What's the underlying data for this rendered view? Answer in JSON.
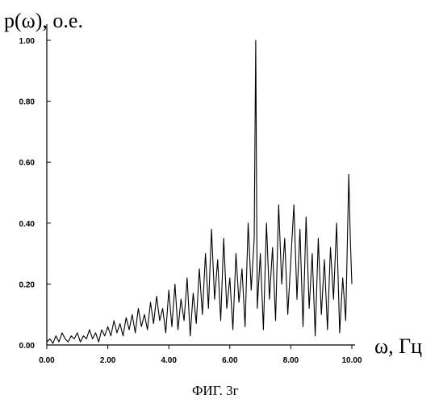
{
  "chart_data": {
    "type": "line",
    "title": "",
    "ylabel": "p(ω), о.е.",
    "xlabel": "ω, Гц",
    "caption": "ФИГ. 3г",
    "xlim": [
      0,
      10
    ],
    "ylim": [
      0,
      1
    ],
    "x_ticks": [
      0,
      2,
      4,
      6,
      8,
      10
    ],
    "x_tick_labels": [
      "0.00",
      "2.00",
      "4.00",
      "6.00",
      "8.00",
      "10.00"
    ],
    "y_ticks": [
      0,
      0.2,
      0.4,
      0.6,
      0.8,
      1.0
    ],
    "y_tick_labels": [
      "0.00",
      "0.20",
      "0.40",
      "0.60",
      "0.80",
      "1.00"
    ],
    "grid": false,
    "series": [
      {
        "x": [
          0.0,
          0.1,
          0.2,
          0.3,
          0.4,
          0.5,
          0.6,
          0.7,
          0.8,
          0.9,
          1.0,
          1.1,
          1.2,
          1.3,
          1.4,
          1.5,
          1.6,
          1.7,
          1.8,
          1.9,
          2.0,
          2.1,
          2.2,
          2.3,
          2.4,
          2.5,
          2.6,
          2.7,
          2.8,
          2.9,
          3.0,
          3.1,
          3.2,
          3.3,
          3.4,
          3.5,
          3.6,
          3.7,
          3.8,
          3.9,
          4.0,
          4.1,
          4.2,
          4.3,
          4.4,
          4.5,
          4.6,
          4.7,
          4.8,
          4.9,
          5.0,
          5.1,
          5.2,
          5.3,
          5.4,
          5.5,
          5.6,
          5.7,
          5.8,
          5.9,
          6.0,
          6.1,
          6.2,
          6.3,
          6.4,
          6.5,
          6.6,
          6.7,
          6.8,
          6.85,
          6.9,
          7.0,
          7.1,
          7.2,
          7.3,
          7.4,
          7.5,
          7.6,
          7.7,
          7.8,
          7.9,
          8.0,
          8.1,
          8.2,
          8.3,
          8.4,
          8.5,
          8.6,
          8.7,
          8.8,
          8.9,
          9.0,
          9.1,
          9.2,
          9.3,
          9.4,
          9.5,
          9.6,
          9.7,
          9.8,
          9.9,
          9.95,
          10.0
        ],
        "y": [
          0.01,
          0.02,
          0.005,
          0.03,
          0.01,
          0.04,
          0.02,
          0.01,
          0.03,
          0.02,
          0.04,
          0.01,
          0.03,
          0.02,
          0.05,
          0.02,
          0.04,
          0.01,
          0.05,
          0.03,
          0.06,
          0.03,
          0.08,
          0.04,
          0.07,
          0.03,
          0.09,
          0.05,
          0.1,
          0.04,
          0.12,
          0.06,
          0.1,
          0.05,
          0.14,
          0.07,
          0.16,
          0.08,
          0.12,
          0.04,
          0.18,
          0.06,
          0.2,
          0.05,
          0.15,
          0.08,
          0.22,
          0.03,
          0.17,
          0.07,
          0.25,
          0.1,
          0.3,
          0.12,
          0.38,
          0.15,
          0.28,
          0.08,
          0.35,
          0.12,
          0.22,
          0.05,
          0.3,
          0.14,
          0.25,
          0.06,
          0.4,
          0.18,
          0.35,
          1.0,
          0.12,
          0.3,
          0.05,
          0.4,
          0.15,
          0.32,
          0.08,
          0.46,
          0.2,
          0.35,
          0.1,
          0.28,
          0.46,
          0.15,
          0.38,
          0.06,
          0.42,
          0.12,
          0.3,
          0.03,
          0.35,
          0.1,
          0.28,
          0.05,
          0.32,
          0.15,
          0.4,
          0.04,
          0.22,
          0.08,
          0.56,
          0.35,
          0.2
        ]
      }
    ]
  }
}
